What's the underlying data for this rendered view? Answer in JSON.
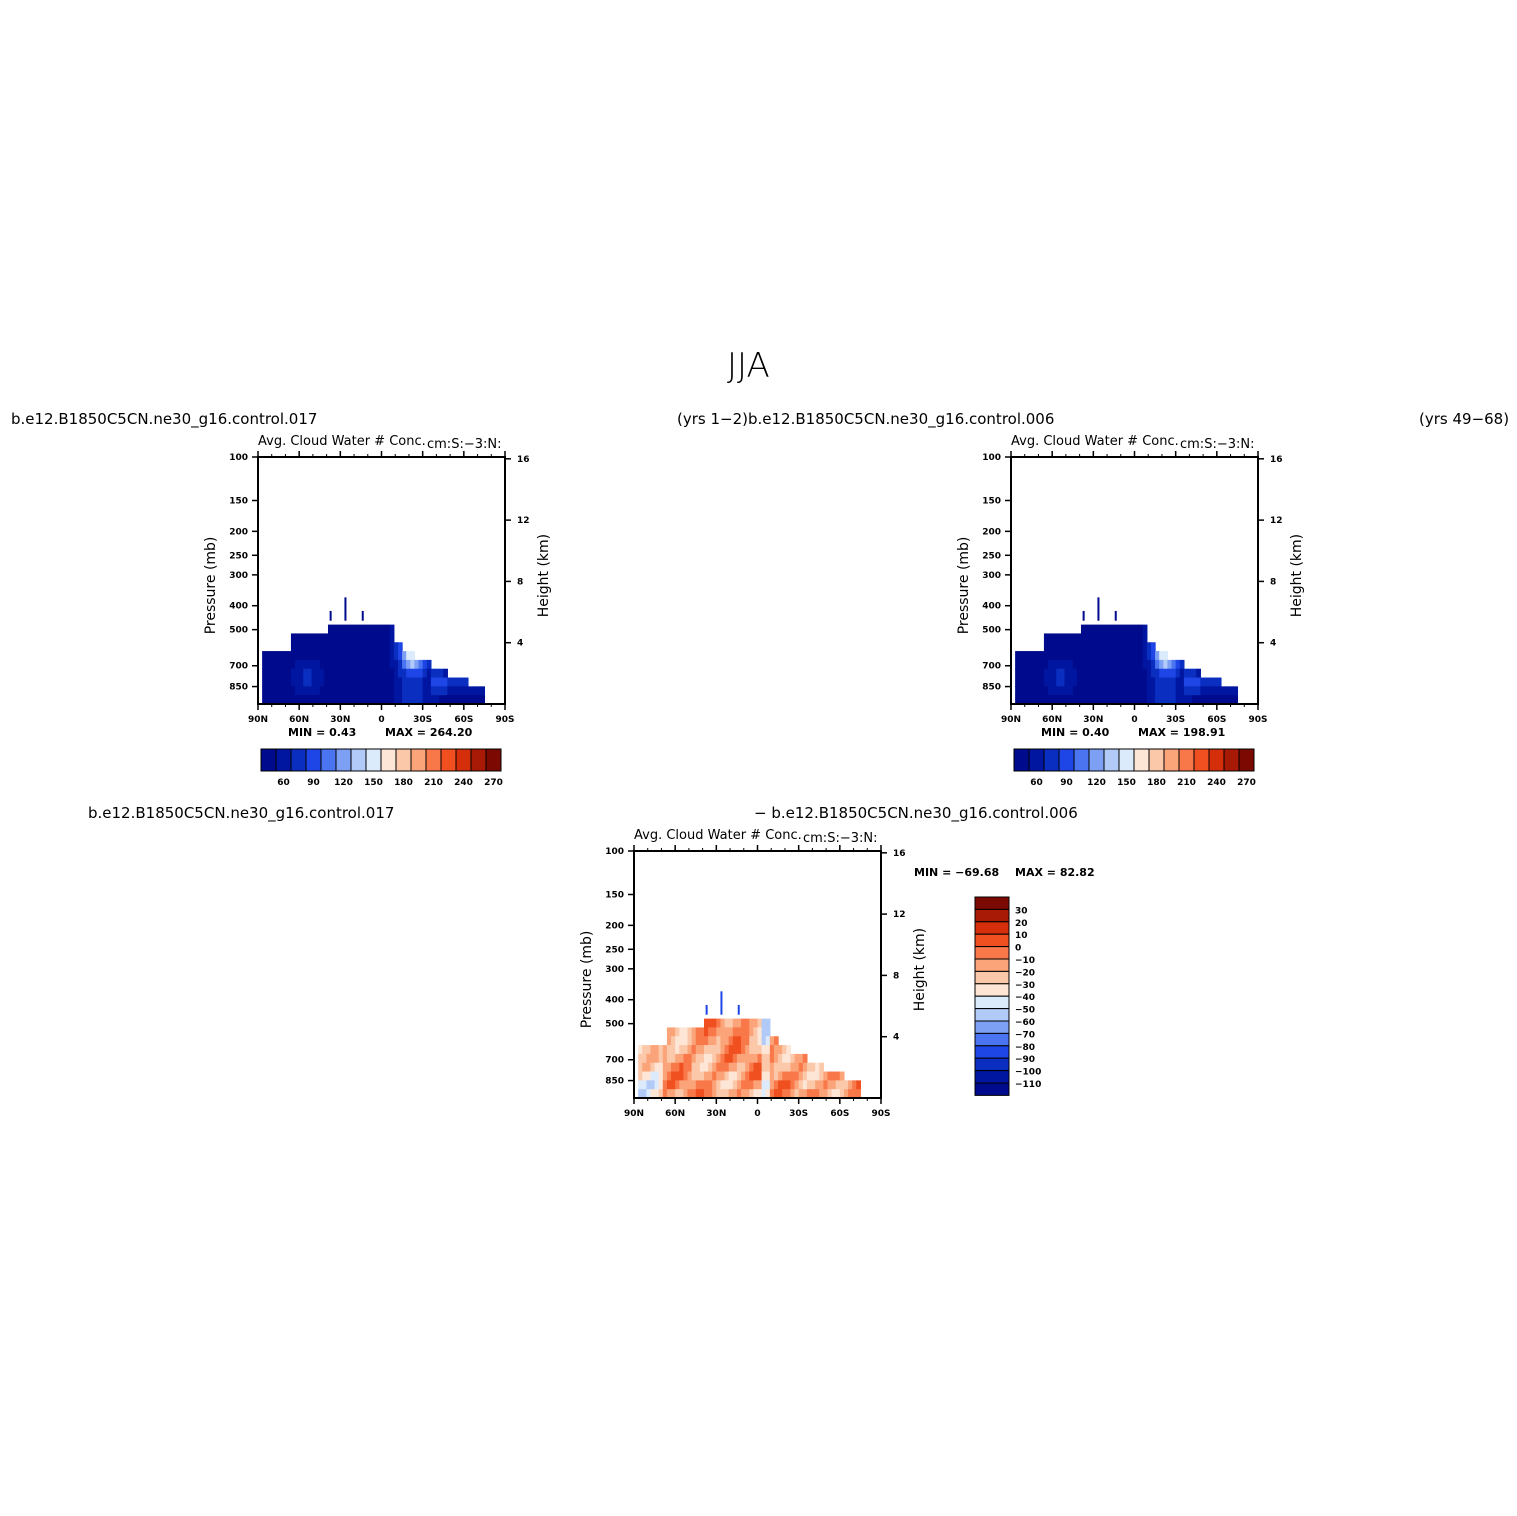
{
  "figure": {
    "title": "JJA",
    "top_left_case": "b.e12.B1850C5CN.ne30_g16.control.017",
    "top_mid_case": "(yrs  1−2)b.e12.B1850C5CN.ne30_g16.control.006",
    "top_right_case": "(yrs  49−68)",
    "bottom_left_case": "b.e12.B1850C5CN.ne30_g16.control.017",
    "bottom_mid_case": "−  b.e12.B1850C5CN.ne30_g16.control.006"
  },
  "chart_data": [
    {
      "type": "heatmap",
      "title": "Avg. Cloud Water # Conc.",
      "units": "cm:S:−3:N:",
      "xlabel": "",
      "ylabel": "Pressure  (mb)",
      "ylabel_right": "Height  (km)",
      "x_ticks": [
        "90N",
        "60N",
        "30N",
        "0",
        "30S",
        "60S",
        "90S"
      ],
      "y_ticks": [
        100,
        150,
        200,
        250,
        300,
        400,
        500,
        700,
        850
      ],
      "y_right_ticks": [
        16,
        12,
        8,
        4
      ],
      "ylim": [
        1000,
        100
      ],
      "log_y": true,
      "min_label": "MIN =     0.43",
      "max_label": "MAX  =  264.20",
      "min": 0.43,
      "max": 264.2,
      "colorbar_levels": [
        "60",
        "90",
        "120",
        "150",
        "180",
        "210",
        "240",
        "270"
      ],
      "colorbar_orientation": "horizontal"
    },
    {
      "type": "heatmap",
      "title": "Avg. Cloud Water # Conc.",
      "units": "cm:S:−3:N:",
      "xlabel": "",
      "ylabel": "Pressure  (mb)",
      "ylabel_right": "Height  (km)",
      "x_ticks": [
        "90N",
        "60N",
        "30N",
        "0",
        "30S",
        "60S",
        "90S"
      ],
      "y_ticks": [
        100,
        150,
        200,
        250,
        300,
        400,
        500,
        700,
        850
      ],
      "y_right_ticks": [
        16,
        12,
        8,
        4
      ],
      "ylim": [
        1000,
        100
      ],
      "log_y": true,
      "min_label": "MIN =     0.40",
      "max_label": "MAX  =  198.91",
      "min": 0.4,
      "max": 198.91,
      "colorbar_levels": [
        "60",
        "90",
        "120",
        "150",
        "180",
        "210",
        "240",
        "270"
      ],
      "colorbar_orientation": "horizontal"
    },
    {
      "type": "heatmap",
      "title": "Avg. Cloud Water # Conc.",
      "units": "cm:S:−3:N:",
      "xlabel": "",
      "ylabel": "Pressure  (mb)",
      "ylabel_right": "Height  (km)",
      "x_ticks": [
        "90N",
        "60N",
        "30N",
        "0",
        "30S",
        "60S",
        "90S"
      ],
      "y_ticks": [
        100,
        150,
        200,
        250,
        300,
        400,
        500,
        700,
        850
      ],
      "y_right_ticks": [
        16,
        12,
        8,
        4
      ],
      "ylim": [
        1000,
        100
      ],
      "log_y": true,
      "min_label": "MIN = −69.68",
      "max_label": "MAX  =   82.82",
      "min": -69.68,
      "max": 82.82,
      "colorbar_levels": [
        "30",
        "20",
        "10",
        "0",
        "−10",
        "−20",
        "−30",
        "−40",
        "−50",
        "−60",
        "−70",
        "−80",
        "−90",
        "−100",
        "−110"
      ],
      "colorbar_orientation": "vertical"
    }
  ],
  "palettes": {
    "abs": [
      "#000a8c",
      "#0016a0",
      "#0a2ec0",
      "#1e46e6",
      "#4a74f0",
      "#7ea0f4",
      "#b2caf8",
      "#dcebfc",
      "#fde6d6",
      "#fcc8aa",
      "#fba47a",
      "#f8784a",
      "#f05020",
      "#d42e0a",
      "#a81a06",
      "#7c0a02"
    ],
    "diff_top_to_bottom": [
      "#7c0a02",
      "#a81a06",
      "#d42e0a",
      "#f05020",
      "#f8784a",
      "#fba47a",
      "#fcc8aa",
      "#fde6d6",
      "#dcebfc",
      "#b2caf8",
      "#7ea0f4",
      "#4a74f0",
      "#1e46e6",
      "#0a2ec0",
      "#0016a0",
      "#000a8c"
    ]
  }
}
